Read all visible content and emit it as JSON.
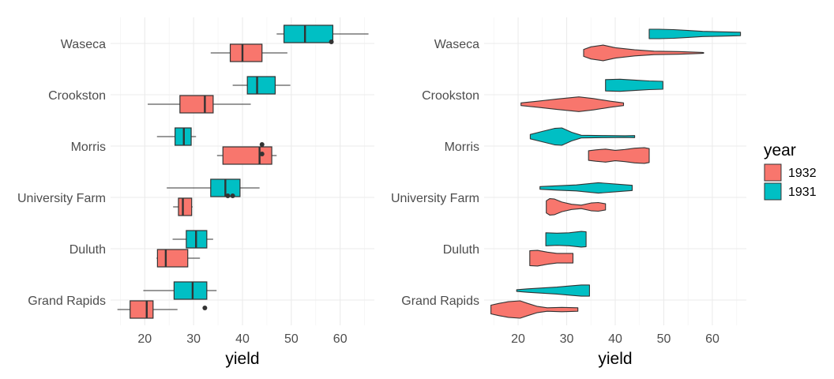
{
  "chart_data": [
    {
      "type": "box",
      "xlabel": "yield",
      "ylabel": "",
      "xlim": [
        13,
        67
      ],
      "xticks": [
        20,
        30,
        40,
        50,
        60
      ],
      "categories": [
        "Waseca",
        "Crookston",
        "Morris",
        "University Farm",
        "Duluth",
        "Grand Rapids"
      ],
      "series": [
        {
          "name": "1932",
          "boxes": [
            {
              "site": "Waseca",
              "min": 33.5,
              "q1": 37.5,
              "median": 40.0,
              "q3": 44.0,
              "max": 49.2,
              "outliers": []
            },
            {
              "site": "Crookston",
              "min": 20.6,
              "q1": 27.2,
              "median": 32.3,
              "q3": 34.0,
              "max": 41.7,
              "outliers": []
            },
            {
              "site": "Morris",
              "min": 34.8,
              "q1": 36.0,
              "median": 43.5,
              "q3": 46.0,
              "max": 47.0,
              "outliers": [
                44.0
              ]
            },
            {
              "site": "University Farm",
              "min": 25.8,
              "q1": 26.9,
              "median": 27.8,
              "q3": 29.6,
              "max": 29.8,
              "outliers": []
            },
            {
              "site": "Duluth",
              "min": 22.4,
              "q1": 22.6,
              "median": 24.3,
              "q3": 28.8,
              "max": 31.3,
              "outliers": []
            },
            {
              "site": "Grand Rapids",
              "min": 14.4,
              "q1": 17.0,
              "median": 20.4,
              "q3": 21.7,
              "max": 26.7,
              "outliers": [
                32.3
              ]
            }
          ]
        },
        {
          "name": "1931",
          "boxes": [
            {
              "site": "Waseca",
              "min": 47.0,
              "q1": 48.5,
              "median": 52.8,
              "q3": 58.5,
              "max": 65.8,
              "outliers": [
                58.2
              ]
            },
            {
              "site": "Crookston",
              "min": 38.0,
              "q1": 41.0,
              "median": 43.0,
              "q3": 46.7,
              "max": 49.8,
              "outliers": []
            },
            {
              "site": "Morris",
              "min": 22.5,
              "q1": 26.2,
              "median": 28.0,
              "q3": 29.5,
              "max": 30.5,
              "outliers": [
                44.0
              ]
            },
            {
              "site": "University Farm",
              "min": 24.5,
              "q1": 33.5,
              "median": 36.5,
              "q3": 39.5,
              "max": 43.5,
              "outliers": [
                37.0,
                38.0
              ]
            },
            {
              "site": "Duluth",
              "min": 25.7,
              "q1": 28.5,
              "median": 30.5,
              "q3": 32.7,
              "max": 34.0,
              "outliers": []
            },
            {
              "site": "Grand Rapids",
              "min": 19.7,
              "q1": 26.0,
              "median": 29.8,
              "q3": 32.7,
              "max": 34.7,
              "outliers": []
            }
          ]
        }
      ]
    },
    {
      "type": "violin",
      "xlabel": "yield",
      "ylabel": "",
      "xlim": [
        13,
        67
      ],
      "xticks": [
        20,
        30,
        40,
        50,
        60
      ],
      "categories": [
        "Waseca",
        "Crookston",
        "Morris",
        "University Farm",
        "Duluth",
        "Grand Rapids"
      ],
      "legend": {
        "title": "year",
        "position": "right"
      },
      "series": [
        {
          "name": "1932",
          "color": "#f8766d",
          "violins": [
            {
              "site": "Waseca",
              "profile": [
                [
                  33.5,
                  0.4
                ],
                [
                  35,
                  0.7
                ],
                [
                  37.5,
                  0.9
                ],
                [
                  40,
                  0.6
                ],
                [
                  44,
                  0.35
                ],
                [
                  48,
                  0.2
                ],
                [
                  53,
                  0.15
                ],
                [
                  58.2,
                  0.05
                ]
              ]
            },
            {
              "site": "Crookston",
              "profile": [
                [
                  20.6,
                  0.15
                ],
                [
                  24,
                  0.35
                ],
                [
                  28,
                  0.6
                ],
                [
                  32.5,
                  0.85
                ],
                [
                  35.5,
                  0.65
                ],
                [
                  39,
                  0.35
                ],
                [
                  41.7,
                  0.15
                ]
              ]
            },
            {
              "site": "Morris",
              "profile": [
                [
                  34.5,
                  0.55
                ],
                [
                  36,
                  0.65
                ],
                [
                  38,
                  0.75
                ],
                [
                  40,
                  0.6
                ],
                [
                  42,
                  0.7
                ],
                [
                  44,
                  0.85
                ],
                [
                  46,
                  0.9
                ],
                [
                  47,
                  0.8
                ]
              ]
            },
            {
              "site": "University Farm",
              "profile": [
                [
                  25.8,
                  0.7
                ],
                [
                  26.5,
                  0.95
                ],
                [
                  27.5,
                  0.9
                ],
                [
                  29,
                  0.55
                ],
                [
                  31,
                  0.3
                ],
                [
                  33,
                  0.2
                ],
                [
                  35,
                  0.45
                ],
                [
                  36.5,
                  0.5
                ],
                [
                  38,
                  0.35
                ]
              ]
            },
            {
              "site": "Duluth",
              "profile": [
                [
                  22.4,
                  0.85
                ],
                [
                  24,
                  0.9
                ],
                [
                  26,
                  0.7
                ],
                [
                  28,
                  0.55
                ],
                [
                  29.5,
                  0.55
                ],
                [
                  31.3,
                  0.55
                ]
              ]
            },
            {
              "site": "Grand Rapids",
              "profile": [
                [
                  14.4,
                  0.5
                ],
                [
                  16,
                  0.7
                ],
                [
                  18,
                  0.9
                ],
                [
                  20.4,
                  1.0
                ],
                [
                  22,
                  0.7
                ],
                [
                  24,
                  0.35
                ],
                [
                  26,
                  0.2
                ],
                [
                  29,
                  0.25
                ],
                [
                  32.3,
                  0.2
                ]
              ]
            }
          ]
        },
        {
          "name": "1931",
          "color": "#00bfc4",
          "violins": [
            {
              "site": "Waseca",
              "profile": [
                [
                  47,
                  0.55
                ],
                [
                  49,
                  0.55
                ],
                [
                  52,
                  0.5
                ],
                [
                  55,
                  0.4
                ],
                [
                  58,
                  0.3
                ],
                [
                  62,
                  0.25
                ],
                [
                  65.8,
                  0.2
                ]
              ]
            },
            {
              "site": "Crookston",
              "profile": [
                [
                  38,
                  0.65
                ],
                [
                  41,
                  0.7
                ],
                [
                  44,
                  0.6
                ],
                [
                  47,
                  0.5
                ],
                [
                  49.8,
                  0.45
                ]
              ]
            },
            {
              "site": "Morris",
              "profile": [
                [
                  22.5,
                  0.25
                ],
                [
                  25,
                  0.6
                ],
                [
                  27.5,
                  0.95
                ],
                [
                  29,
                  1.0
                ],
                [
                  31,
                  0.5
                ],
                [
                  33,
                  0.15
                ],
                [
                  38,
                  0.12
                ],
                [
                  42,
                  0.1
                ],
                [
                  44,
                  0.12
                ]
              ]
            },
            {
              "site": "University Farm",
              "profile": [
                [
                  24.5,
                  0.15
                ],
                [
                  28,
                  0.25
                ],
                [
                  32,
                  0.35
                ],
                [
                  36.5,
                  0.6
                ],
                [
                  40,
                  0.45
                ],
                [
                  43.5,
                  0.3
                ]
              ]
            },
            {
              "site": "Duluth",
              "profile": [
                [
                  25.7,
                  0.75
                ],
                [
                  28,
                  0.7
                ],
                [
                  30.5,
                  0.75
                ],
                [
                  33,
                  0.9
                ],
                [
                  34,
                  0.85
                ]
              ]
            },
            {
              "site": "Grand Rapids",
              "profile": [
                [
                  19.7,
                  0.1
                ],
                [
                  22,
                  0.2
                ],
                [
                  25,
                  0.3
                ],
                [
                  28,
                  0.4
                ],
                [
                  31,
                  0.55
                ],
                [
                  33,
                  0.65
                ],
                [
                  34.7,
                  0.65
                ]
              ]
            }
          ]
        }
      ]
    }
  ]
}
